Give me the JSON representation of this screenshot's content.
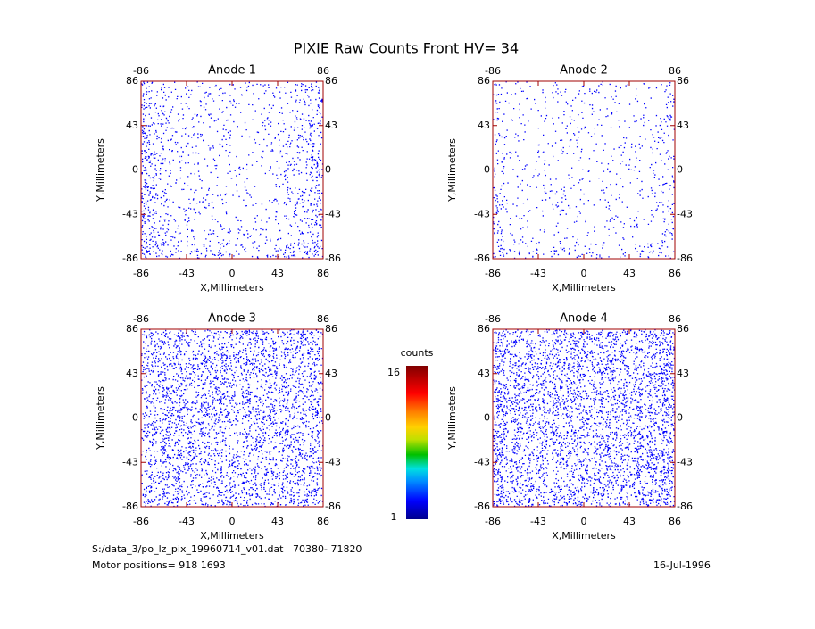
{
  "title": "PIXIE Raw Counts Front HV= 34",
  "panels": [
    {
      "title": "Anode 1",
      "xlabel": "X,Millimeters",
      "ylabel": "Y,Millimeters",
      "xlim": [
        -86,
        86
      ],
      "ylim": [
        -86,
        86
      ],
      "xticks": [
        -86,
        -43,
        0,
        43,
        86
      ],
      "yticks": [
        -86,
        -43,
        0,
        43,
        86
      ],
      "top_xticks": [
        -86,
        86
      ]
    },
    {
      "title": "Anode 2",
      "xlabel": "X,Millimeters",
      "ylabel": "Y,Millimeters",
      "xlim": [
        -86,
        86
      ],
      "ylim": [
        -86,
        86
      ],
      "xticks": [
        -86,
        -43,
        0,
        43,
        86
      ],
      "yticks": [
        -86,
        -43,
        0,
        43,
        86
      ],
      "top_xticks": [
        -86,
        86
      ]
    },
    {
      "title": "Anode 3",
      "xlabel": "X,Millimeters",
      "ylabel": "Y,Millimeters",
      "xlim": [
        -86,
        86
      ],
      "ylim": [
        -86,
        86
      ],
      "xticks": [
        -86,
        -43,
        0,
        43,
        86
      ],
      "yticks": [
        -86,
        -43,
        0,
        43,
        86
      ],
      "top_xticks": [
        -86,
        86
      ]
    },
    {
      "title": "Anode 4",
      "xlabel": "X,Millimeters",
      "ylabel": "Y,Millimeters",
      "xlim": [
        -86,
        86
      ],
      "ylim": [
        -86,
        86
      ],
      "xticks": [
        -86,
        -43,
        0,
        43,
        86
      ],
      "yticks": [
        -86,
        -43,
        0,
        43,
        86
      ],
      "top_xticks": [
        -86,
        86
      ]
    }
  ],
  "colorbar": {
    "label": "counts",
    "lim": [
      1,
      16
    ],
    "ticks": [
      1,
      16
    ]
  },
  "footer": {
    "file": "S:/data_3/po_lz_pix_19960714_v01.dat   70380- 71820",
    "motor": "Motor positions= 918 1693",
    "date": "16-Jul-1996"
  }
}
